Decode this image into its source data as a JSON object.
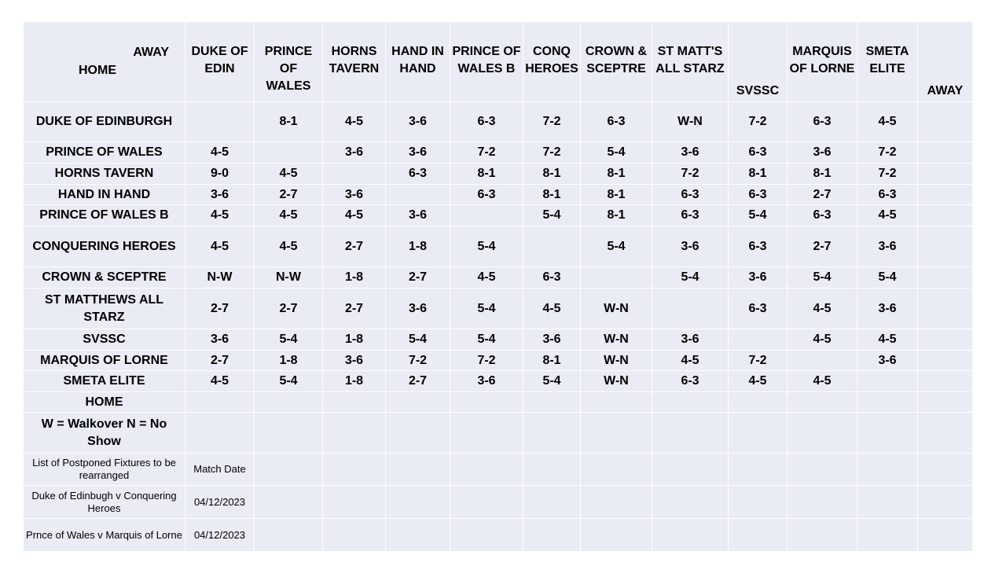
{
  "corner": {
    "away": "AWAY",
    "home": "HOME"
  },
  "columns": [
    "DUKE OF EDIN",
    "PRINCE OF WALES",
    "HORNS TAVERN",
    "HAND IN HAND",
    "PRINCE OF WALES B",
    "CONQ HEROES",
    "CROWN & SCEPTRE",
    "ST MATT'S ALL STARZ",
    "SVSSC",
    "MARQUIS OF LORNE",
    "SMETA ELITE",
    "AWAY"
  ],
  "rows": [
    {
      "team": "DUKE OF EDINBURGH",
      "scores": [
        "",
        "8-1",
        "4-5",
        "3-6",
        "6-3",
        "7-2",
        "6-3",
        "W-N",
        "7-2",
        "6-3",
        "4-5",
        ""
      ]
    },
    {
      "team": "PRINCE OF WALES",
      "scores": [
        "4-5",
        "",
        "3-6",
        "3-6",
        "7-2",
        "7-2",
        "5-4",
        "3-6",
        "6-3",
        "3-6",
        "7-2",
        ""
      ]
    },
    {
      "team": "HORNS TAVERN",
      "scores": [
        "9-0",
        "4-5",
        "",
        "6-3",
        "8-1",
        "8-1",
        "8-1",
        "7-2",
        "8-1",
        "8-1",
        "7-2",
        ""
      ]
    },
    {
      "team": "HAND IN HAND",
      "scores": [
        "3-6",
        "2-7",
        "3-6",
        "",
        "6-3",
        "8-1",
        "8-1",
        "6-3",
        "6-3",
        "2-7",
        "6-3",
        ""
      ]
    },
    {
      "team": "PRINCE OF WALES B",
      "scores": [
        "4-5",
        "4-5",
        "4-5",
        "3-6",
        "",
        "5-4",
        "8-1",
        "6-3",
        "5-4",
        "6-3",
        "4-5",
        ""
      ]
    },
    {
      "team": "CONQUERING HEROES",
      "scores": [
        "4-5",
        "4-5",
        "2-7",
        "1-8",
        "5-4",
        "",
        "5-4",
        "3-6",
        "6-3",
        "2-7",
        "3-6",
        ""
      ]
    },
    {
      "team": "CROWN & SCEPTRE",
      "scores": [
        "N-W",
        "N-W",
        "1-8",
        "2-7",
        "4-5",
        "6-3",
        "",
        "5-4",
        "3-6",
        "5-4",
        "5-4",
        ""
      ]
    },
    {
      "team": "ST MATTHEWS ALL STARZ",
      "scores": [
        "2-7",
        "2-7",
        "2-7",
        "3-6",
        "5-4",
        "4-5",
        "W-N",
        "",
        "6-3",
        "4-5",
        "3-6",
        ""
      ]
    },
    {
      "team": "SVSSC",
      "scores": [
        "3-6",
        "5-4",
        "1-8",
        "5-4",
        "5-4",
        "3-6",
        "W-N",
        "3-6",
        "",
        "4-5",
        "4-5",
        ""
      ]
    },
    {
      "team": "MARQUIS OF LORNE",
      "scores": [
        "2-7",
        "1-8",
        "3-6",
        "7-2",
        "7-2",
        "8-1",
        "W-N",
        "4-5",
        "7-2",
        "",
        "3-6",
        ""
      ]
    },
    {
      "team": "SMETA ELITE",
      "scores": [
        "4-5",
        "5-4",
        "1-8",
        "2-7",
        "3-6",
        "5-4",
        "W-N",
        "6-3",
        "4-5",
        "4-5",
        "",
        ""
      ]
    }
  ],
  "footer": {
    "home_label": "HOME",
    "legend": "W = Walkover N = No Show",
    "postponed_title": "List of Postponed Fixtures to be rearranged",
    "match_date_header": "Match Date",
    "fixtures": [
      {
        "fixture": "Duke of Edinbugh v Conquering Heroes",
        "date": "04/12/2023"
      },
      {
        "fixture": "Prnce of Wales v Marquis of Lorne",
        "date": "04/12/2023"
      }
    ]
  }
}
